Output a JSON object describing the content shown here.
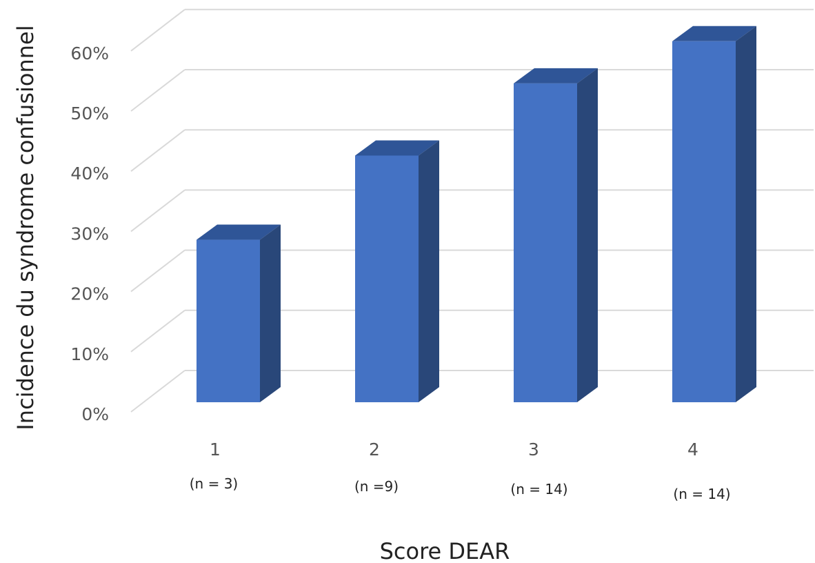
{
  "chart_data": {
    "type": "bar",
    "title": "",
    "xlabel": "Score DEAR",
    "ylabel": "Incidence du syndrome confusionnel",
    "categories": [
      "1",
      "2",
      "3",
      "4"
    ],
    "sample_sizes": [
      "(n = 3)",
      "(n =9)",
      "(n = 14)",
      "(n = 14)"
    ],
    "series": [
      {
        "values": [
          27,
          41,
          53,
          60
        ]
      }
    ],
    "y_unit": "%",
    "y_ticks": [
      0,
      10,
      20,
      30,
      40,
      50,
      60
    ],
    "y_tick_labels": [
      "0%",
      "10%",
      "20%",
      "30%",
      "40%",
      "50%",
      "60%"
    ],
    "ylim": [
      0,
      70
    ],
    "grid": true,
    "legend": "none",
    "three_d": true,
    "colors": {
      "bar_front": "#4472C4",
      "bar_top": "#2F5597",
      "bar_side": "#294779",
      "grid": "#D9D9D9"
    }
  }
}
